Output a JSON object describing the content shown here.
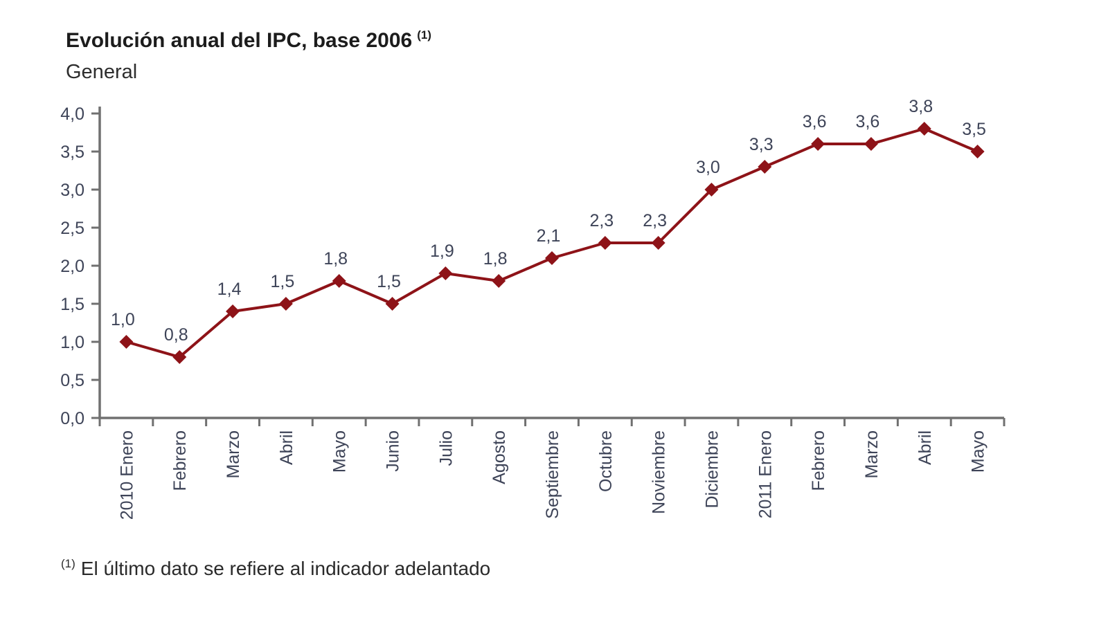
{
  "header": {
    "title": "Evolución anual del IPC, base 2006",
    "title_superscript": "(1)",
    "subtitle": "General"
  },
  "footnote": {
    "marker": "(1)",
    "text": "El último dato se refiere al indicador adelantado"
  },
  "chart_data": {
    "type": "line",
    "title": "Evolución anual del IPC, base 2006 (1)",
    "series_name": "General",
    "categories": [
      "2010 Enero",
      "Febrero",
      "Marzo",
      "Abril",
      "Mayo",
      "Junio",
      "Julio",
      "Agosto",
      "Septiembre",
      "Octubre",
      "Noviembre",
      "Diciembre",
      "2011 Enero",
      "Febrero",
      "Marzo",
      "Abril",
      "Mayo"
    ],
    "values": [
      1.0,
      0.8,
      1.4,
      1.5,
      1.8,
      1.5,
      1.9,
      1.8,
      2.1,
      2.3,
      2.3,
      3.0,
      3.3,
      3.6,
      3.6,
      3.8,
      3.5
    ],
    "point_labels": [
      "1,0",
      "0,8",
      "1,4",
      "1,5",
      "1,8",
      "1,5",
      "1,9",
      "1,8",
      "2,1",
      "2,3",
      "2,3",
      "3,0",
      "3,3",
      "3,6",
      "3,6",
      "3,8",
      "3,5"
    ],
    "ylim": [
      0,
      4
    ],
    "ytick_step": 0.5,
    "ytick_labels": [
      "0,0",
      "0,5",
      "1,0",
      "1,5",
      "2,0",
      "2,5",
      "3,0",
      "3,5",
      "4,0"
    ],
    "xlabel": "",
    "ylabel": "",
    "grid": false,
    "legend": "none",
    "marker": "diamond",
    "colors": {
      "line": "#8E1318",
      "axis": "#707070",
      "tick_label": "#3E4458",
      "data_label": "#3E4458"
    }
  }
}
